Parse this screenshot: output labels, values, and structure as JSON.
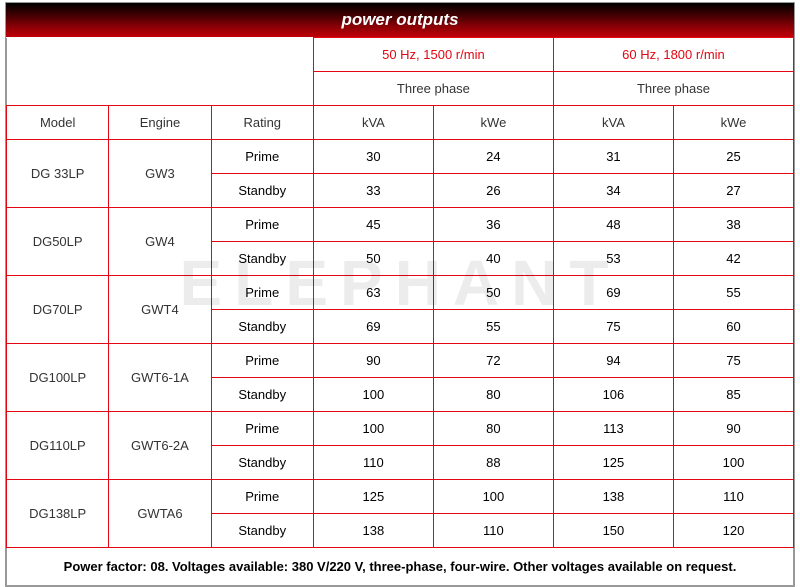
{
  "title": "power outputs",
  "watermark": "ELEPHANT",
  "freq50": {
    "hz": "50 Hz, 1500 r/min",
    "phase": "Three phase"
  },
  "freq60": {
    "hz": "60 Hz, 1800 r/min",
    "phase": "Three phase"
  },
  "headers": {
    "model": "Model",
    "engine": "Engine",
    "rating": "Rating",
    "kva": "kVA",
    "kwe": "kWe"
  },
  "ratings": {
    "prime": "Prime",
    "standby": "Standby"
  },
  "rows": [
    {
      "model": "DG 33LP",
      "engine": "GW3",
      "prime": {
        "kva50": "30",
        "kwe50": "24",
        "kva60": "31",
        "kwe60": "25"
      },
      "standby": {
        "kva50": "33",
        "kwe50": "26",
        "kva60": "34",
        "kwe60": "27"
      }
    },
    {
      "model": "DG50LP",
      "engine": "GW4",
      "prime": {
        "kva50": "45",
        "kwe50": "36",
        "kva60": "48",
        "kwe60": "38"
      },
      "standby": {
        "kva50": "50",
        "kwe50": "40",
        "kva60": "53",
        "kwe60": "42"
      }
    },
    {
      "model": "DG70LP",
      "engine": "GWT4",
      "prime": {
        "kva50": "63",
        "kwe50": "50",
        "kva60": "69",
        "kwe60": "55"
      },
      "standby": {
        "kva50": "69",
        "kwe50": "55",
        "kva60": "75",
        "kwe60": "60"
      }
    },
    {
      "model": "DG100LP",
      "engine": "GWT6-1A",
      "prime": {
        "kva50": "90",
        "kwe50": "72",
        "kva60": "94",
        "kwe60": "75"
      },
      "standby": {
        "kva50": "100",
        "kwe50": "80",
        "kva60": "106",
        "kwe60": "85"
      }
    },
    {
      "model": "DG110LP",
      "engine": "GWT6-2A",
      "prime": {
        "kva50": "100",
        "kwe50": "80",
        "kva60": "113",
        "kwe60": "90"
      },
      "standby": {
        "kva50": "110",
        "kwe50": "88",
        "kva60": "125",
        "kwe60": "100"
      }
    },
    {
      "model": "DG138LP",
      "engine": "GWTA6",
      "prime": {
        "kva50": "125",
        "kwe50": "100",
        "kva60": "138",
        "kwe60": "110"
      },
      "standby": {
        "kva50": "138",
        "kwe50": "110",
        "kva60": "150",
        "kwe60": "120"
      }
    }
  ],
  "footer": "Power factor: 08. Voltages available: 380 V/220 V, three-phase, four-wire. Other voltages available on request.",
  "colors": {
    "border": "#e30613",
    "accent_text": "#e30613",
    "body_text": "#333333",
    "title_gradient_top": "#000000",
    "title_gradient_bottom": "#c00008",
    "background": "#ffffff"
  },
  "col_widths_pct": [
    13,
    13,
    13,
    15.25,
    15.25,
    15.25,
    15.25
  ]
}
